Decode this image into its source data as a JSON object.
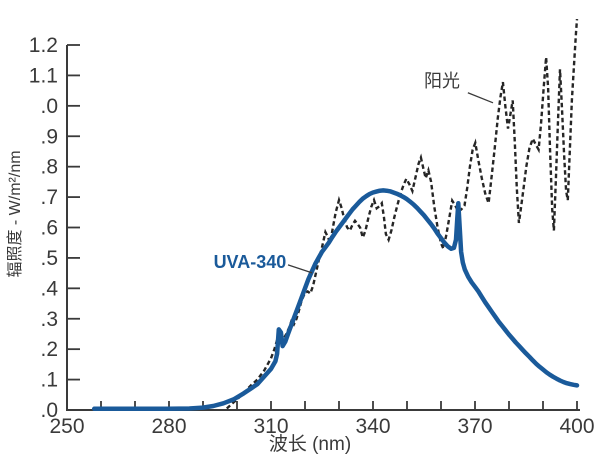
{
  "chart_data": {
    "type": "line",
    "title": "",
    "xlabel": "波长 (nm)",
    "ylabel": "辐照度 - W/m²/nm",
    "x_range": [
      250,
      400
    ],
    "y_range": [
      0,
      1.2
    ],
    "grid": false,
    "legend_position": "inline-annotations",
    "axis_color": "#3a3a3a",
    "x_ticks": [
      {
        "value": 250,
        "label": "250"
      },
      {
        "value": 260
      },
      {
        "value": 270
      },
      {
        "value": 280,
        "label": "280"
      },
      {
        "value": 290
      },
      {
        "value": 300
      },
      {
        "value": 310,
        "label": "310"
      },
      {
        "value": 320
      },
      {
        "value": 330
      },
      {
        "value": 340,
        "label": "340"
      },
      {
        "value": 350
      },
      {
        "value": 360
      },
      {
        "value": 370,
        "label": "370"
      },
      {
        "value": 380
      },
      {
        "value": 390
      },
      {
        "value": 400,
        "label": "400"
      }
    ],
    "y_ticks": [
      {
        "value": 0.0,
        "label": ".0"
      },
      {
        "value": 0.1,
        "label": ".1"
      },
      {
        "value": 0.2,
        "label": ".2"
      },
      {
        "value": 0.3,
        "label": ".3"
      },
      {
        "value": 0.4,
        "label": ".4"
      },
      {
        "value": 0.5,
        "label": ".5"
      },
      {
        "value": 0.6,
        "label": ".6"
      },
      {
        "value": 0.7,
        "label": ".7"
      },
      {
        "value": 0.8,
        "label": ".8"
      },
      {
        "value": 0.9,
        "label": ".9"
      },
      {
        "value": 1.0,
        "label": ".0"
      },
      {
        "value": 1.1,
        "label": "1.1"
      },
      {
        "value": 1.2,
        "label": "1.2"
      }
    ],
    "series": [
      {
        "key": "sunlight",
        "name": "阳光",
        "style": "dashed",
        "color": "#262626",
        "points": [
          [
            297,
            0.005
          ],
          [
            298,
            0.015
          ],
          [
            299,
            0.025
          ],
          [
            300,
            0.035
          ],
          [
            301,
            0.045
          ],
          [
            302,
            0.055
          ],
          [
            303,
            0.068
          ],
          [
            304,
            0.08
          ],
          [
            305,
            0.09
          ],
          [
            306,
            0.1
          ],
          [
            307,
            0.115
          ],
          [
            308,
            0.13
          ],
          [
            309,
            0.15
          ],
          [
            310,
            0.17
          ],
          [
            311,
            0.2
          ],
          [
            311.8,
            0.23
          ],
          [
            312.4,
            0.248
          ],
          [
            313,
            0.225
          ],
          [
            313.8,
            0.235
          ],
          [
            314.5,
            0.25
          ],
          [
            315.5,
            0.275
          ],
          [
            316.2,
            0.3
          ],
          [
            316.8,
            0.283
          ],
          [
            317.5,
            0.3
          ],
          [
            318.3,
            0.33
          ],
          [
            319,
            0.36
          ],
          [
            320,
            0.385
          ],
          [
            320.8,
            0.39
          ],
          [
            321.6,
            0.383
          ],
          [
            322.4,
            0.41
          ],
          [
            323.2,
            0.45
          ],
          [
            324,
            0.49
          ],
          [
            325,
            0.535
          ],
          [
            326,
            0.585
          ],
          [
            326.6,
            0.572
          ],
          [
            327.4,
            0.55
          ],
          [
            328.2,
            0.6
          ],
          [
            329,
            0.648
          ],
          [
            330,
            0.69
          ],
          [
            330.8,
            0.663
          ],
          [
            331.6,
            0.625
          ],
          [
            332.4,
            0.6
          ],
          [
            333.2,
            0.59
          ],
          [
            334,
            0.61
          ],
          [
            334.7,
            0.622
          ],
          [
            335.4,
            0.612
          ],
          [
            336.2,
            0.6
          ],
          [
            337,
            0.567
          ],
          [
            337.8,
            0.59
          ],
          [
            338.7,
            0.635
          ],
          [
            339.5,
            0.668
          ],
          [
            340.3,
            0.69
          ],
          [
            341.1,
            0.663
          ],
          [
            341.9,
            0.67
          ],
          [
            342.6,
            0.68
          ],
          [
            343.2,
            0.635
          ],
          [
            343.8,
            0.578
          ],
          [
            344.6,
            0.56
          ],
          [
            345.4,
            0.59
          ],
          [
            346.3,
            0.635
          ],
          [
            347.2,
            0.675
          ],
          [
            348.2,
            0.715
          ],
          [
            349,
            0.74
          ],
          [
            349.8,
            0.76
          ],
          [
            350.7,
            0.742
          ],
          [
            351.6,
            0.72
          ],
          [
            352.5,
            0.765
          ],
          [
            353.4,
            0.81
          ],
          [
            354.1,
            0.83
          ],
          [
            354.8,
            0.795
          ],
          [
            355.5,
            0.762
          ],
          [
            356.3,
            0.788
          ],
          [
            357.1,
            0.75
          ],
          [
            358,
            0.67
          ],
          [
            359,
            0.6
          ],
          [
            360,
            0.548
          ],
          [
            360.7,
            0.53
          ],
          [
            361.5,
            0.572
          ],
          [
            362.4,
            0.63
          ],
          [
            363.3,
            0.688
          ],
          [
            364.2,
            0.672
          ],
          [
            365.1,
            0.652
          ],
          [
            366,
            0.66
          ],
          [
            366.9,
            0.672
          ],
          [
            367.7,
            0.73
          ],
          [
            368.5,
            0.8
          ],
          [
            369.3,
            0.855
          ],
          [
            370.1,
            0.878
          ],
          [
            371,
            0.82
          ],
          [
            372,
            0.762
          ],
          [
            373,
            0.712
          ],
          [
            374,
            0.68
          ],
          [
            374.9,
            0.77
          ],
          [
            375.8,
            0.86
          ],
          [
            376.7,
            0.96
          ],
          [
            377.5,
            1.03
          ],
          [
            378.2,
            1.078
          ],
          [
            378.9,
            1.0
          ],
          [
            379.7,
            0.925
          ],
          [
            380.4,
            0.972
          ],
          [
            381.1,
            1.018
          ],
          [
            381.7,
            0.88
          ],
          [
            382.3,
            0.73
          ],
          [
            382.9,
            0.615
          ],
          [
            383.6,
            0.67
          ],
          [
            384.3,
            0.73
          ],
          [
            385.1,
            0.8
          ],
          [
            386,
            0.86
          ],
          [
            387,
            0.892
          ],
          [
            387.9,
            0.872
          ],
          [
            388.7,
            0.856
          ],
          [
            389.4,
            0.94
          ],
          [
            390.2,
            1.06
          ],
          [
            390.9,
            1.16
          ],
          [
            391.5,
            1.06
          ],
          [
            392.1,
            0.85
          ],
          [
            392.7,
            0.66
          ],
          [
            393.2,
            0.59
          ],
          [
            393.8,
            0.76
          ],
          [
            394.4,
            0.95
          ],
          [
            395,
            1.12
          ],
          [
            395.6,
            0.99
          ],
          [
            396.2,
            0.84
          ],
          [
            396.8,
            0.72
          ],
          [
            397.3,
            0.69
          ],
          [
            397.9,
            0.86
          ],
          [
            398.5,
            1.02
          ],
          [
            399.2,
            1.15
          ],
          [
            399.7,
            1.24
          ],
          [
            400,
            1.285
          ]
        ]
      },
      {
        "key": "uva-340",
        "name": "UVA-340",
        "style": "solid",
        "color": "#1a5a9a",
        "points": [
          [
            258,
            0.004
          ],
          [
            265,
            0.004
          ],
          [
            272,
            0.004
          ],
          [
            280,
            0.004
          ],
          [
            286,
            0.005
          ],
          [
            290,
            0.008
          ],
          [
            293,
            0.013
          ],
          [
            296,
            0.022
          ],
          [
            299,
            0.035
          ],
          [
            302,
            0.055
          ],
          [
            304,
            0.07
          ],
          [
            306,
            0.085
          ],
          [
            308,
            0.11
          ],
          [
            310,
            0.135
          ],
          [
            311.3,
            0.16
          ],
          [
            311.8,
            0.185
          ],
          [
            312.3,
            0.265
          ],
          [
            312.9,
            0.255
          ],
          [
            313.4,
            0.21
          ],
          [
            314.2,
            0.225
          ],
          [
            315,
            0.25
          ],
          [
            316,
            0.28
          ],
          [
            317,
            0.31
          ],
          [
            318,
            0.34
          ],
          [
            319,
            0.37
          ],
          [
            320,
            0.4
          ],
          [
            321,
            0.43
          ],
          [
            322,
            0.455
          ],
          [
            323,
            0.48
          ],
          [
            324,
            0.5
          ],
          [
            325,
            0.52
          ],
          [
            326,
            0.535
          ],
          [
            327,
            0.55
          ],
          [
            328,
            0.568
          ],
          [
            329,
            0.585
          ],
          [
            330,
            0.6
          ],
          [
            331,
            0.615
          ],
          [
            332,
            0.63
          ],
          [
            333,
            0.645
          ],
          [
            334,
            0.66
          ],
          [
            335,
            0.672
          ],
          [
            336,
            0.684
          ],
          [
            337,
            0.695
          ],
          [
            338,
            0.703
          ],
          [
            339,
            0.71
          ],
          [
            340,
            0.715
          ],
          [
            341,
            0.718
          ],
          [
            342,
            0.721
          ],
          [
            343,
            0.722
          ],
          [
            344,
            0.721
          ],
          [
            345,
            0.719
          ],
          [
            346,
            0.715
          ],
          [
            347,
            0.711
          ],
          [
            348,
            0.706
          ],
          [
            349,
            0.7
          ],
          [
            350,
            0.693
          ],
          [
            351,
            0.684
          ],
          [
            352,
            0.675
          ],
          [
            353,
            0.664
          ],
          [
            354,
            0.652
          ],
          [
            355,
            0.64
          ],
          [
            356,
            0.626
          ],
          [
            357,
            0.612
          ],
          [
            358,
            0.597
          ],
          [
            359,
            0.58
          ],
          [
            360,
            0.565
          ],
          [
            361,
            0.55
          ],
          [
            362,
            0.538
          ],
          [
            363,
            0.53
          ],
          [
            363.8,
            0.533
          ],
          [
            364.4,
            0.56
          ],
          [
            364.8,
            0.63
          ],
          [
            365.1,
            0.68
          ],
          [
            365.5,
            0.6
          ],
          [
            365.9,
            0.52
          ],
          [
            366.4,
            0.485
          ],
          [
            367,
            0.462
          ],
          [
            368,
            0.438
          ],
          [
            369,
            0.42
          ],
          [
            370,
            0.405
          ],
          [
            371,
            0.39
          ],
          [
            372,
            0.372
          ],
          [
            373,
            0.354
          ],
          [
            374,
            0.338
          ],
          [
            375,
            0.322
          ],
          [
            376,
            0.306
          ],
          [
            377,
            0.29
          ],
          [
            378,
            0.276
          ],
          [
            379,
            0.262
          ],
          [
            380,
            0.248
          ],
          [
            381,
            0.235
          ],
          [
            382,
            0.222
          ],
          [
            383,
            0.21
          ],
          [
            384,
            0.198
          ],
          [
            385,
            0.186
          ],
          [
            386,
            0.175
          ],
          [
            387,
            0.163
          ],
          [
            388,
            0.152
          ],
          [
            389,
            0.142
          ],
          [
            390,
            0.133
          ],
          [
            391,
            0.124
          ],
          [
            392,
            0.116
          ],
          [
            393,
            0.109
          ],
          [
            394,
            0.103
          ],
          [
            395,
            0.097
          ],
          [
            396,
            0.092
          ],
          [
            397,
            0.088
          ],
          [
            398,
            0.085
          ],
          [
            399,
            0.083
          ],
          [
            400,
            0.081
          ]
        ]
      }
    ],
    "annotations": [
      {
        "key": "sunlight",
        "text": "阳光",
        "color": "#3a3a3a",
        "bold": false,
        "x": 360.3,
        "y": 1.082,
        "leader": [
          [
            367.9,
            1.043
          ],
          [
            375.3,
            1.01
          ]
        ]
      },
      {
        "key": "uva-340",
        "text": "UVA-340",
        "color": "#1a5a9a",
        "bold": true,
        "x": 303.8,
        "y": 0.487,
        "leader": [
          [
            315,
            0.477
          ],
          [
            322.1,
            0.451
          ]
        ]
      }
    ]
  }
}
